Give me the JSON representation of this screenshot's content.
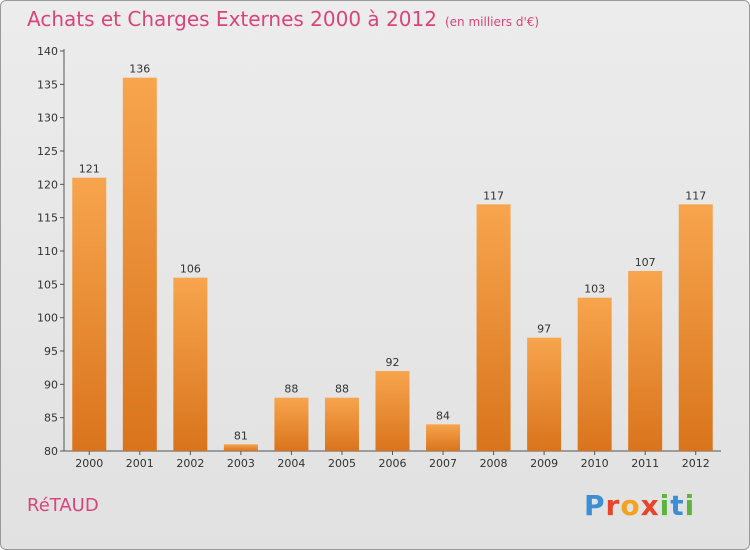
{
  "header": {
    "title": "Achats et Charges Externes 2000 à 2012",
    "unit": "(en milliers d'€)"
  },
  "footer": {
    "commune": "RéTAUD",
    "brand": "Proxiti"
  },
  "colors": {
    "bar_top": "#f7a54e",
    "bar_bottom": "#d9741c",
    "title": "#d9457a"
  },
  "chart_data": {
    "type": "bar",
    "title": "Achats et Charges Externes 2000 à 2012",
    "subtitle": "(en milliers d'€)",
    "xlabel": "",
    "ylabel": "",
    "categories": [
      "2000",
      "2001",
      "2002",
      "2003",
      "2004",
      "2005",
      "2006",
      "2007",
      "2008",
      "2009",
      "2010",
      "2011",
      "2012"
    ],
    "values": [
      121,
      136,
      106,
      81,
      88,
      88,
      92,
      84,
      117,
      97,
      103,
      107,
      117
    ],
    "ylim": [
      80,
      140
    ],
    "yticks": [
      80,
      85,
      90,
      95,
      100,
      105,
      110,
      115,
      120,
      125,
      130,
      135,
      140
    ],
    "grid": false,
    "legend": "none"
  }
}
